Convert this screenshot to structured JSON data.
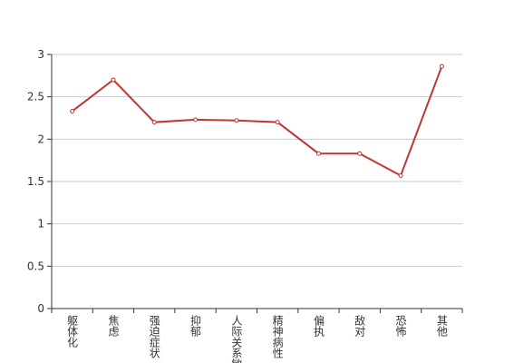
{
  "chart_data": {
    "type": "line",
    "categories": [
      "躯体化",
      "焦虑",
      "强迫症状",
      "抑郁",
      "人际关系敏感",
      "精神病性",
      "偏执",
      "敌对",
      "恐怖",
      "其他"
    ],
    "series": [
      {
        "color": "#c23531",
        "values": [
          2.33,
          2.7,
          2.2,
          2.23,
          2.22,
          2.2,
          1.83,
          1.83,
          1.57,
          2.86
        ]
      }
    ],
    "ylim": [
      0,
      3
    ],
    "yticks": [
      0,
      0.5,
      1,
      1.5,
      2,
      2.5,
      3
    ],
    "grid": true
  }
}
